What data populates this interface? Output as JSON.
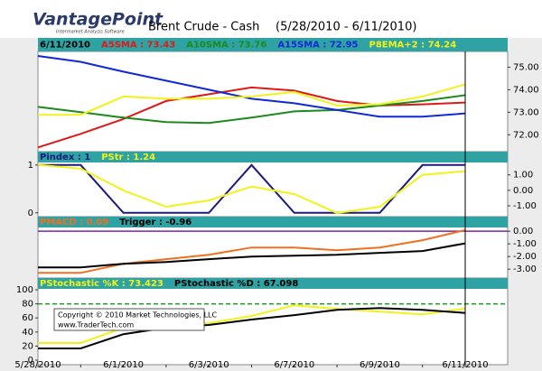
{
  "header": {
    "logo": "VantagePoint",
    "logo_tagline": "Intermarket Analysis Software",
    "title": "Brent Crude -  Cash",
    "range": "(5/28/2010 - 6/11/2010)"
  },
  "copyright": [
    "Copyright © 2010 Market Technologies, LLC",
    "www.TraderTech.com"
  ],
  "chart_data": [
    {
      "type": "line",
      "date_label": "6/11/2010",
      "y_axis_side": "right",
      "ylim": [
        71.25,
        75.7
      ],
      "yticks": [
        {
          "value": 72,
          "label": "72.00"
        },
        {
          "value": 73,
          "label": "73.00"
        },
        {
          "value": 74,
          "label": "74.00"
        },
        {
          "value": 75,
          "label": "75.00"
        }
      ],
      "series": [
        {
          "name": "A5SMA : 73.43",
          "color": "#e01818",
          "values": [
            71.44,
            72.04,
            72.7,
            73.5,
            73.8,
            74.1,
            73.96,
            73.5,
            73.3,
            73.35,
            73.43
          ]
        },
        {
          "name": "A10SMA : 73.76",
          "color": "#1a8a1a",
          "values": [
            73.24,
            73.0,
            72.76,
            72.56,
            72.52,
            72.76,
            73.04,
            73.1,
            73.3,
            73.5,
            73.76
          ]
        },
        {
          "name": "A15SMA : 72.95",
          "color": "#1028d8",
          "values": [
            75.5,
            75.24,
            74.8,
            74.4,
            74.0,
            73.6,
            73.4,
            73.1,
            72.8,
            72.8,
            72.95
          ]
        },
        {
          "name": "P8EMA+2 : 74.24",
          "color": "#f2f21a",
          "values": [
            72.88,
            72.88,
            73.7,
            73.6,
            73.6,
            73.7,
            73.9,
            73.3,
            73.35,
            73.7,
            74.24
          ]
        }
      ]
    },
    {
      "type": "line",
      "y_axis_side": "left",
      "ylim": [
        -0.08,
        1.28
      ],
      "yticks": [
        0,
        1
      ],
      "y2lim": [
        -1.7,
        2.5
      ],
      "y2ticks": [
        {
          "value": -1,
          "label": "-1.00"
        },
        {
          "value": 0,
          "label": "0.00"
        },
        {
          "value": 1,
          "label": "1.00"
        }
      ],
      "series": [
        {
          "name": "Pindex : 1",
          "color": "#1a1a80",
          "values": [
            1,
            1,
            0,
            0,
            0,
            1,
            0,
            0,
            0,
            1,
            1
          ]
        },
        {
          "name": "PStr : 1.24",
          "color": "#f2f21a",
          "axis": "y2",
          "values": [
            1.65,
            1.4,
            0,
            -1.06,
            -0.65,
            0.24,
            -0.24,
            -1.47,
            -1.06,
            1.0,
            1.24
          ]
        }
      ]
    },
    {
      "type": "line",
      "y_axis_side": "right",
      "ylim": [
        -3.7,
        1.15
      ],
      "yticks": [
        {
          "value": -3,
          "label": "-3.00"
        },
        {
          "value": -2,
          "label": "-2.00"
        },
        {
          "value": -1,
          "label": "-1.00"
        },
        {
          "value": 0,
          "label": "0.00"
        }
      ],
      "hline": {
        "value": 0,
        "color": "#8020a0",
        "dashed": false
      },
      "series": [
        {
          "name": "PMACD : 0.09",
          "color": "#f07020",
          "values": [
            -3.29,
            -3.29,
            -2.57,
            -2.21,
            -1.86,
            -1.29,
            -1.29,
            -1.5,
            -1.29,
            -0.71,
            0.09
          ]
        },
        {
          "name": "Trigger : -0.96",
          "color": "#000000",
          "values": [
            -2.86,
            -2.86,
            -2.57,
            -2.43,
            -2.21,
            -2.0,
            -1.93,
            -1.86,
            -1.71,
            -1.57,
            -0.96
          ]
        }
      ]
    },
    {
      "type": "line",
      "y_axis_side": "left",
      "ylim": [
        -6.4,
        116.7
      ],
      "yticks": [
        0,
        20,
        40,
        60,
        80,
        100
      ],
      "hline": {
        "value": 80,
        "color": "#1a9a1a",
        "dashed": true
      },
      "categories": [
        "5/28/2010",
        null,
        "6/1/2010",
        null,
        "6/3/2010",
        null,
        "6/7/2010",
        null,
        "6/9/2010",
        null,
        "6/11/2010"
      ],
      "series": [
        {
          "name": "PStochastic %K : 73.423",
          "color": "#f2f21a",
          "values": [
            24.4,
            24.4,
            46,
            47,
            52.6,
            62.8,
            78,
            73,
            69,
            65,
            73.4
          ]
        },
        {
          "name": "PStochastic %D : 67.098",
          "color": "#000000",
          "values": [
            16.7,
            16.7,
            37,
            46,
            50,
            57.7,
            64,
            71.6,
            74,
            71.6,
            67.1
          ]
        }
      ]
    }
  ]
}
